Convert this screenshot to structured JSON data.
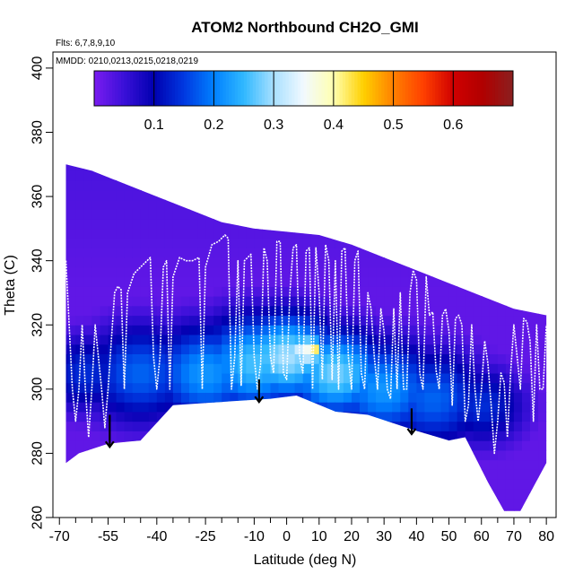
{
  "chart_data": {
    "type": "heatmap",
    "title": "ATOM2 Northbound CH2O_GMI",
    "flights_note": "Flts: 6,7,8,9,10",
    "dates_note": "MMDD: 0210,0213,0215,0218,0219",
    "xlabel": "Latitude (deg N)",
    "ylabel": "Theta (C)",
    "xlim": [
      -72,
      83
    ],
    "ylim": [
      260,
      405
    ],
    "x_ticks": [
      -70,
      -55,
      -40,
      -25,
      -10,
      0,
      10,
      20,
      30,
      40,
      50,
      60,
      70,
      80
    ],
    "x_ticks_minor": [
      -65,
      -60,
      -50,
      -45,
      -35,
      -30,
      -20,
      -15,
      -5,
      5,
      15,
      25,
      35,
      45,
      55,
      65,
      75
    ],
    "y_ticks": [
      260,
      280,
      300,
      320,
      340,
      360,
      380,
      400
    ],
    "colorbar": {
      "range": [
        0,
        0.7
      ],
      "ticks": [
        0.1,
        0.2,
        0.3,
        0.4,
        0.5,
        0.6
      ],
      "tick_labels": [
        "0.1",
        "0.2",
        "0.3",
        "0.4",
        "0.5",
        "0.6"
      ],
      "stops": [
        {
          "v": 0.0,
          "color": "#7a1cf0"
        },
        {
          "v": 0.05,
          "color": "#3a10d8"
        },
        {
          "v": 0.1,
          "color": "#0000b0"
        },
        {
          "v": 0.15,
          "color": "#0038e0"
        },
        {
          "v": 0.2,
          "color": "#0080ff"
        },
        {
          "v": 0.25,
          "color": "#30b8ff"
        },
        {
          "v": 0.3,
          "color": "#a8e0ff"
        },
        {
          "v": 0.35,
          "color": "#f2f9ff"
        },
        {
          "v": 0.4,
          "color": "#ffffb0"
        },
        {
          "v": 0.45,
          "color": "#ffd000"
        },
        {
          "v": 0.5,
          "color": "#ff8000"
        },
        {
          "v": 0.55,
          "color": "#ff4000"
        },
        {
          "v": 0.6,
          "color": "#d00000"
        },
        {
          "v": 0.65,
          "color": "#b00000"
        },
        {
          "v": 0.7,
          "color": "#8a2020"
        }
      ]
    },
    "domain_top": [
      [
        -68,
        370
      ],
      [
        -60,
        368
      ],
      [
        -50,
        364
      ],
      [
        -40,
        360
      ],
      [
        -30,
        356
      ],
      [
        -20,
        352
      ],
      [
        -10,
        350
      ],
      [
        0,
        349
      ],
      [
        10,
        348
      ],
      [
        20,
        345
      ],
      [
        30,
        341
      ],
      [
        40,
        337
      ],
      [
        50,
        333
      ],
      [
        60,
        329
      ],
      [
        70,
        325
      ],
      [
        80,
        323
      ]
    ],
    "domain_bottom": [
      [
        -68,
        277
      ],
      [
        -64,
        280
      ],
      [
        -55,
        283
      ],
      [
        -45,
        284
      ],
      [
        -35,
        295
      ],
      [
        -20,
        296
      ],
      [
        -5,
        297
      ],
      [
        3,
        298
      ],
      [
        15,
        293
      ],
      [
        25,
        292
      ],
      [
        40,
        287
      ],
      [
        50,
        284
      ],
      [
        55,
        285
      ],
      [
        62,
        271
      ],
      [
        67,
        262
      ],
      [
        72,
        262
      ],
      [
        80,
        277
      ],
      [
        80,
        340
      ]
    ],
    "hotspots": [
      {
        "lat": -62,
        "theta": 305,
        "value": 0.14,
        "spread": 8
      },
      {
        "lat": -45,
        "theta": 305,
        "value": 0.18,
        "spread": 10
      },
      {
        "lat": -25,
        "theta": 305,
        "value": 0.22,
        "spread": 10
      },
      {
        "lat": -10,
        "theta": 308,
        "value": 0.26,
        "spread": 10
      },
      {
        "lat": 0,
        "theta": 310,
        "value": 0.3,
        "spread": 9
      },
      {
        "lat": 6,
        "theta": 312,
        "value": 0.36,
        "spread": 4
      },
      {
        "lat": 8,
        "theta": 312,
        "value": 0.45,
        "spread": 2
      },
      {
        "lat": 15,
        "theta": 305,
        "value": 0.28,
        "spread": 9
      },
      {
        "lat": 30,
        "theta": 300,
        "value": 0.22,
        "spread": 10
      },
      {
        "lat": 45,
        "theta": 297,
        "value": 0.18,
        "spread": 10
      },
      {
        "lat": 60,
        "theta": 295,
        "value": 0.14,
        "spread": 8
      }
    ],
    "flight_track": [
      [
        -68,
        340
      ],
      [
        -67,
        320
      ],
      [
        -66,
        300
      ],
      [
        -65,
        290
      ],
      [
        -64,
        300
      ],
      [
        -63,
        320
      ],
      [
        -62,
        300
      ],
      [
        -61,
        285
      ],
      [
        -60,
        300
      ],
      [
        -59,
        320
      ],
      [
        -58,
        310
      ],
      [
        -57,
        300
      ],
      [
        -56,
        288
      ],
      [
        -55,
        300
      ],
      [
        -54,
        315
      ],
      [
        -53,
        330
      ],
      [
        -52,
        332
      ],
      [
        -51,
        331
      ],
      [
        -50,
        300
      ],
      [
        -49,
        330
      ],
      [
        -48,
        333
      ],
      [
        -47,
        336
      ],
      [
        -45,
        338
      ],
      [
        -43,
        340
      ],
      [
        -42,
        341
      ],
      [
        -41,
        310
      ],
      [
        -40,
        300
      ],
      [
        -39,
        310
      ],
      [
        -38,
        338
      ],
      [
        -37,
        340
      ],
      [
        -36,
        300
      ],
      [
        -35,
        335
      ],
      [
        -33,
        341
      ],
      [
        -31,
        340
      ],
      [
        -29,
        340
      ],
      [
        -27,
        341
      ],
      [
        -26,
        300
      ],
      [
        -25,
        338
      ],
      [
        -23,
        345
      ],
      [
        -21,
        346
      ],
      [
        -20,
        347
      ],
      [
        -19,
        348
      ],
      [
        -18,
        347
      ],
      [
        -17,
        300
      ],
      [
        -16,
        310
      ],
      [
        -15,
        340
      ],
      [
        -14,
        301
      ],
      [
        -13,
        340
      ],
      [
        -11,
        342
      ],
      [
        -10,
        310
      ],
      [
        -9,
        300
      ],
      [
        -8,
        308
      ],
      [
        -7,
        344
      ],
      [
        -6,
        340
      ],
      [
        -5,
        310
      ],
      [
        -4,
        305
      ],
      [
        -3,
        346
      ],
      [
        -2,
        346
      ],
      [
        -1,
        305
      ],
      [
        0,
        303
      ],
      [
        1,
        330
      ],
      [
        2,
        344
      ],
      [
        3,
        345
      ],
      [
        4,
        310
      ],
      [
        5,
        305
      ],
      [
        6,
        343
      ],
      [
        7,
        344
      ],
      [
        8,
        300
      ],
      [
        9,
        344
      ],
      [
        10,
        330
      ],
      [
        11,
        303
      ],
      [
        12,
        345
      ],
      [
        13,
        340
      ],
      [
        14,
        303
      ],
      [
        15,
        340
      ],
      [
        16,
        300
      ],
      [
        17,
        343
      ],
      [
        18,
        344
      ],
      [
        19,
        310
      ],
      [
        20,
        300
      ],
      [
        21,
        340
      ],
      [
        22,
        343
      ],
      [
        23,
        305
      ],
      [
        24,
        300
      ],
      [
        25,
        330
      ],
      [
        26,
        325
      ],
      [
        27,
        310
      ],
      [
        28,
        300
      ],
      [
        29,
        325
      ],
      [
        30,
        318
      ],
      [
        31,
        300
      ],
      [
        32,
        297
      ],
      [
        33,
        325
      ],
      [
        34,
        300
      ],
      [
        35,
        330
      ],
      [
        36,
        300
      ],
      [
        37,
        300
      ],
      [
        38,
        330
      ],
      [
        39,
        337
      ],
      [
        40,
        334
      ],
      [
        41,
        305
      ],
      [
        42,
        300
      ],
      [
        43,
        335
      ],
      [
        44,
        323
      ],
      [
        45,
        324
      ],
      [
        46,
        306
      ],
      [
        47,
        300
      ],
      [
        48,
        323
      ],
      [
        49,
        325
      ],
      [
        50,
        318
      ],
      [
        51,
        295
      ],
      [
        52,
        322
      ],
      [
        53,
        323
      ],
      [
        54,
        320
      ],
      [
        55,
        290
      ],
      [
        56,
        295
      ],
      [
        57,
        320
      ],
      [
        58,
        300
      ],
      [
        59,
        290
      ],
      [
        60,
        300
      ],
      [
        61,
        315
      ],
      [
        62,
        308
      ],
      [
        63,
        295
      ],
      [
        64,
        280
      ],
      [
        65,
        290
      ],
      [
        66,
        305
      ],
      [
        67,
        302
      ],
      [
        68,
        285
      ],
      [
        69,
        305
      ],
      [
        70,
        320
      ],
      [
        71,
        310
      ],
      [
        72,
        300
      ],
      [
        73,
        322
      ],
      [
        74,
        321
      ],
      [
        75,
        315
      ],
      [
        76,
        290
      ],
      [
        77,
        320
      ],
      [
        78,
        300
      ],
      [
        79,
        300
      ],
      [
        80,
        320
      ]
    ],
    "arrows": [
      {
        "lat": -54.5,
        "theta_from": 292,
        "theta_to": 282
      },
      {
        "lat": -8.5,
        "theta_from": 303,
        "theta_to": 296
      },
      {
        "lat": 38.5,
        "theta_from": 294,
        "theta_to": 286
      }
    ]
  }
}
